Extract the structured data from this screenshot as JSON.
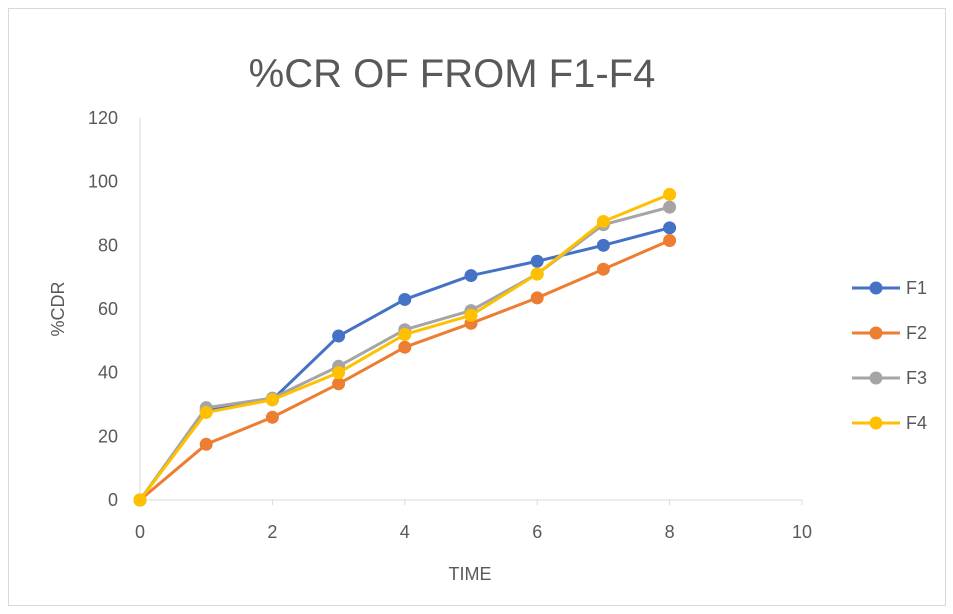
{
  "chart_data": {
    "type": "scatter",
    "title": "%CR OF  FROM F1-F4",
    "xlabel": "TIME",
    "ylabel": "%CDR",
    "xlim": [
      0,
      10
    ],
    "ylim": [
      0,
      120
    ],
    "xticks": [
      0,
      2,
      4,
      6,
      8,
      10
    ],
    "yticks": [
      0,
      20,
      40,
      60,
      80,
      100,
      120
    ],
    "grid": false,
    "legend_position": "right",
    "x": [
      0,
      1,
      2,
      3,
      4,
      5,
      6,
      7,
      8
    ],
    "series": [
      {
        "name": "F1",
        "color": "#4472C4",
        "values": [
          0,
          28,
          31.5,
          51.5,
          63,
          70.5,
          75,
          80,
          85.5
        ]
      },
      {
        "name": "F2",
        "color": "#ED7D31",
        "values": [
          0,
          17.5,
          26,
          36.5,
          48,
          55.5,
          63.5,
          72.5,
          81.5
        ]
      },
      {
        "name": "F3",
        "color": "#A5A5A5",
        "values": [
          0,
          29,
          32,
          42,
          53.5,
          59.5,
          71,
          86.5,
          92
        ]
      },
      {
        "name": "F4",
        "color": "#FFC000",
        "values": [
          0,
          27.5,
          31.5,
          40,
          52,
          58,
          71,
          87.5,
          96
        ]
      }
    ]
  }
}
